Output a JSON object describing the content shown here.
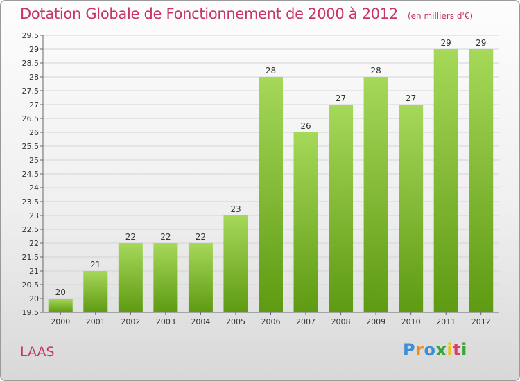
{
  "title": "Dotation Globale de Fonctionnement de 2000 à 2012",
  "unit": "(en milliers d'€)",
  "commune": "LAAS",
  "logo": {
    "letters": [
      "P",
      "r",
      "o",
      "x",
      "i",
      "t",
      "i"
    ],
    "colors": [
      "#3a8fd6",
      "#f08a1c",
      "#3a8fd6",
      "#3aa53a",
      "#e8c21a",
      "#e23a6a",
      "#3aa53a"
    ]
  },
  "colors": {
    "bar_top": "#a6d85a",
    "bar_bottom": "#5e9a12",
    "title": "#c8336a"
  },
  "chart_data": {
    "type": "bar",
    "title": "Dotation Globale de Fonctionnement de 2000 à 2012",
    "subtitle": "(en milliers d'€)",
    "xlabel": "",
    "ylabel": "",
    "categories": [
      "2000",
      "2001",
      "2002",
      "2003",
      "2004",
      "2005",
      "2006",
      "2007",
      "2008",
      "2009",
      "2010",
      "2011",
      "2012"
    ],
    "values": [
      20,
      21,
      22,
      22,
      22,
      23,
      28,
      26,
      27,
      28,
      27,
      29,
      29
    ],
    "labels": [
      "20",
      "21",
      "22",
      "22",
      "22",
      "23",
      "28",
      "26",
      "27",
      "28",
      "27",
      "29",
      "29"
    ],
    "ylim": [
      19.5,
      29.5
    ],
    "yticks": [
      "19.5",
      "20",
      "20.5",
      "21",
      "21.5",
      "22",
      "22.5",
      "23",
      "23.5",
      "24",
      "24.5",
      "25",
      "25.5",
      "26",
      "26.5",
      "27",
      "27.5",
      "28",
      "28.5",
      "29",
      "29.5"
    ],
    "grid": true,
    "legend": "none"
  }
}
